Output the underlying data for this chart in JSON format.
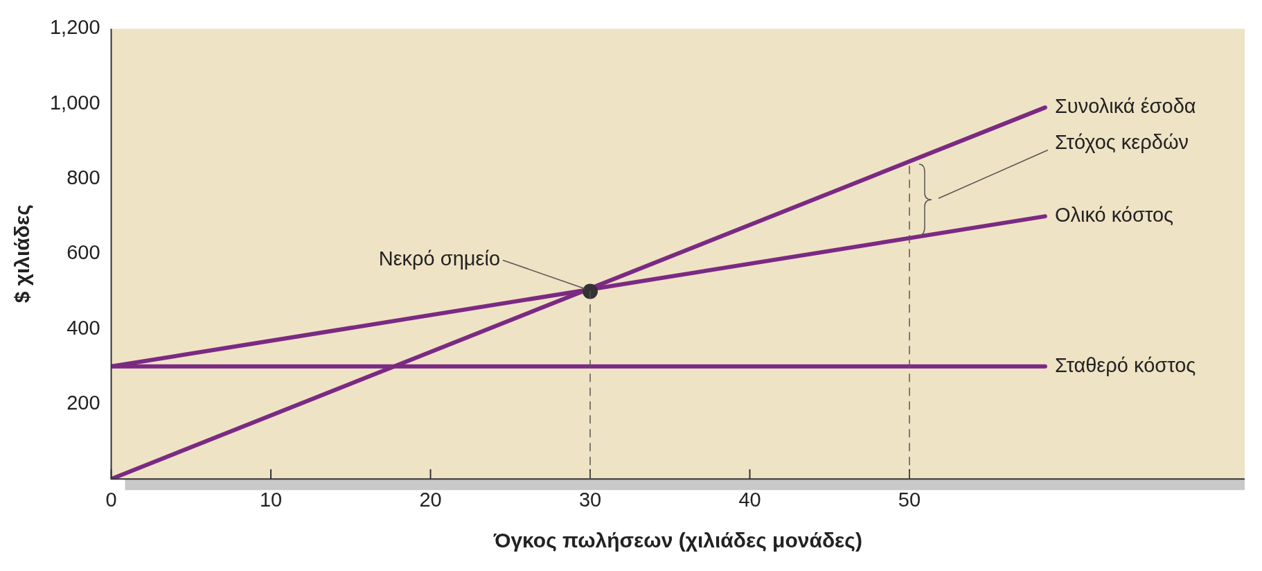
{
  "chart_data": {
    "type": "line",
    "xlabel": "Όγκος πωλήσεων (χιλιάδες μονάδες)",
    "ylabel": "$ χιλιάδες",
    "xlim": [
      0,
      71
    ],
    "ylim": [
      0,
      1200
    ],
    "xticks": [
      0,
      10,
      20,
      30,
      40,
      50
    ],
    "yticks": [
      200,
      400,
      600,
      800,
      "1,000",
      "1,200"
    ],
    "grid": false,
    "legend": false,
    "marker": "none",
    "line_style": "solid",
    "series": [
      {
        "name": "Συνολικά έσοδα",
        "color": "#7b2a83",
        "x": [
          0,
          58.5
        ],
        "values": [
          0,
          990
        ]
      },
      {
        "name": "Ολικό κόστος",
        "color": "#7b2a83",
        "x": [
          0,
          58.5
        ],
        "values": [
          300,
          700
        ]
      },
      {
        "name": "Σταθερό κόστος",
        "color": "#7b2a83",
        "x": [
          0,
          58.5
        ],
        "values": [
          300,
          300
        ]
      },
      {
        "type": "scatter",
        "marker": "circle",
        "color": "#333333",
        "x": [
          30
        ],
        "values": [
          500
        ]
      }
    ],
    "ref_lines": [
      {
        "axis": "x",
        "value": 30,
        "line_style": "dashed",
        "color": "#555555"
      },
      {
        "axis": "x",
        "value": 50,
        "line_style": "dashed",
        "color": "#555555"
      }
    ],
    "annotations": [
      {
        "text": "Νεκρό σημείο",
        "x": 30,
        "y": 500
      },
      "Στόχος κερδών"
    ]
  }
}
